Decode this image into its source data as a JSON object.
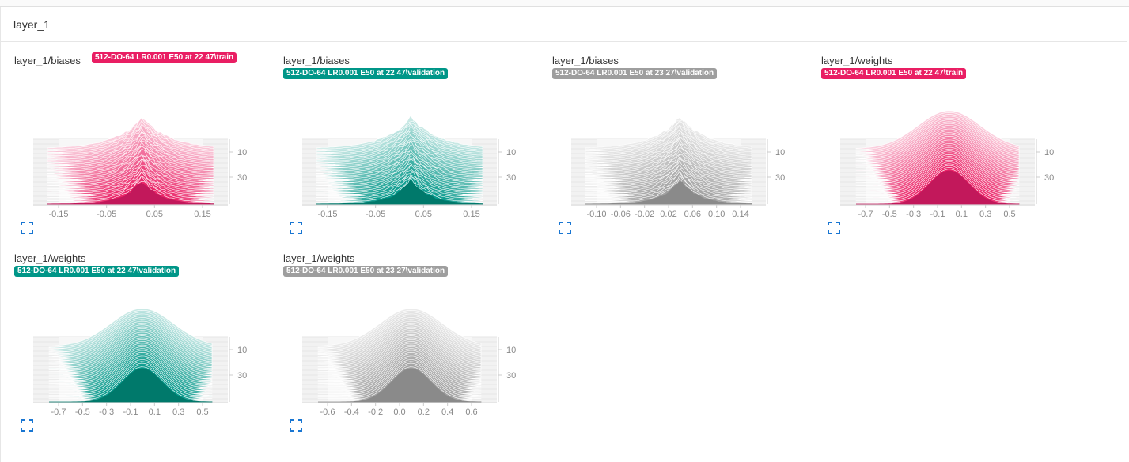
{
  "group": {
    "title": "layer_1"
  },
  "cards": [
    {
      "title": "layer_1/biases",
      "run": "512-DO-64 LR0.001 E50 at 22 47\\train",
      "color": "#e91e63",
      "dark": "#c2185b",
      "x_ticks": [
        "-0.15",
        "-0.05",
        "0.05",
        "0.15"
      ],
      "y_ticks": [
        "10",
        "30"
      ],
      "shape": "spiky",
      "icon": "fullscreen-icon"
    },
    {
      "title": "layer_1/biases",
      "run": "512-DO-64 LR0.001 E50 at 22 47\\validation",
      "color": "#009688",
      "dark": "#00796b",
      "x_ticks": [
        "-0.15",
        "-0.05",
        "0.05",
        "0.15"
      ],
      "y_ticks": [
        "10",
        "30"
      ],
      "shape": "spiky",
      "icon": "fullscreen-icon"
    },
    {
      "title": "layer_1/biases",
      "run": "512-DO-64 LR0.001 E50 at 23 27\\validation",
      "color": "#9e9e9e",
      "dark": "#8a8a8a",
      "x_ticks": [
        "-0.10",
        "-0.06",
        "-0.02",
        "0.02",
        "0.06",
        "0.10",
        "0.14"
      ],
      "y_ticks": [
        "10",
        "30"
      ],
      "shape": "spiky",
      "icon": "fullscreen-icon"
    },
    {
      "title": "layer_1/weights",
      "run": "512-DO-64 LR0.001 E50 at 22 47\\train",
      "color": "#e91e63",
      "dark": "#c2185b",
      "x_ticks": [
        "-0.7",
        "-0.5",
        "-0.3",
        "-0.1",
        "0.1",
        "0.3",
        "0.5"
      ],
      "y_ticks": [
        "10",
        "30"
      ],
      "shape": "smooth",
      "icon": "fullscreen-icon"
    },
    {
      "title": "layer_1/weights",
      "run": "512-DO-64 LR0.001 E50 at 22 47\\validation",
      "color": "#009688",
      "dark": "#00796b",
      "x_ticks": [
        "-0.7",
        "-0.5",
        "-0.3",
        "-0.1",
        "0.1",
        "0.3",
        "0.5"
      ],
      "y_ticks": [
        "10",
        "30"
      ],
      "shape": "smooth",
      "icon": "fullscreen-icon"
    },
    {
      "title": "layer_1/weights",
      "run": "512-DO-64 LR0.001 E50 at 23 27\\validation",
      "color": "#9e9e9e",
      "dark": "#8a8a8a",
      "x_ticks": [
        "-0.6",
        "-0.4",
        "-0.2",
        "0.0",
        "0.2",
        "0.4",
        "0.6"
      ],
      "y_ticks": [
        "10",
        "30"
      ],
      "shape": "smooth",
      "icon": "fullscreen-icon"
    }
  ]
}
